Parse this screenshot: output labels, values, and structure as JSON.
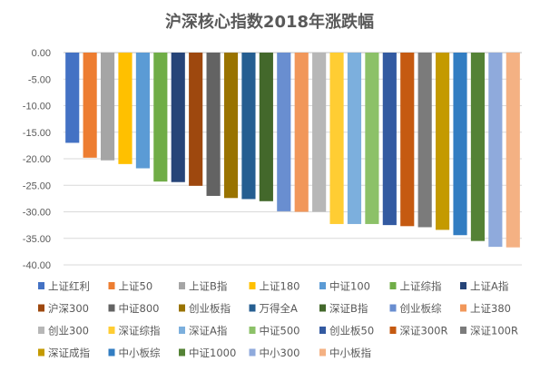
{
  "chart_data": {
    "type": "bar",
    "title": "沪深核心指数2018年涨跌幅",
    "xlabel": "",
    "ylabel": "",
    "ylim": [
      -40,
      0
    ],
    "y_ticks": [
      "0.00",
      "-5.00",
      "-10.00",
      "-15.00",
      "-20.00",
      "-25.00",
      "-30.00",
      "-35.00",
      "-40.00"
    ],
    "grid": true,
    "legend_position": "bottom",
    "series": [
      {
        "name": "上证红利",
        "value": -17.0,
        "color": "#4472C4"
      },
      {
        "name": "上证50",
        "value": -19.8,
        "color": "#ED7D31"
      },
      {
        "name": "上证B指",
        "value": -20.3,
        "color": "#A5A5A5"
      },
      {
        "name": "上证180",
        "value": -21.0,
        "color": "#FFC000"
      },
      {
        "name": "中证100",
        "value": -21.8,
        "color": "#5B9BD5"
      },
      {
        "name": "上证综指",
        "value": -24.3,
        "color": "#70AD47"
      },
      {
        "name": "上证A指",
        "value": -24.4,
        "color": "#264478"
      },
      {
        "name": "沪深300",
        "value": -25.1,
        "color": "#9E480E"
      },
      {
        "name": "中证800",
        "value": -27.0,
        "color": "#636363"
      },
      {
        "name": "创业板指",
        "value": -27.4,
        "color": "#997300"
      },
      {
        "name": "万得全A",
        "value": -27.6,
        "color": "#255E91"
      },
      {
        "name": "深证B指",
        "value": -28.0,
        "color": "#43682B"
      },
      {
        "name": "创业板综",
        "value": -29.9,
        "color": "#698ED0"
      },
      {
        "name": "上证380",
        "value": -30.0,
        "color": "#F1975A"
      },
      {
        "name": "创业300",
        "value": -30.0,
        "color": "#B7B7B7"
      },
      {
        "name": "深证综指",
        "value": -32.3,
        "color": "#FFCD33"
      },
      {
        "name": "深证A指",
        "value": -32.3,
        "color": "#7CAFDD"
      },
      {
        "name": "中证500",
        "value": -32.3,
        "color": "#8CC168"
      },
      {
        "name": "创业板50",
        "value": -32.5,
        "color": "#335AA1"
      },
      {
        "name": "深证300R",
        "value": -32.7,
        "color": "#C55A11"
      },
      {
        "name": "深证100R",
        "value": -32.9,
        "color": "#7B7B7B"
      },
      {
        "name": "深证成指",
        "value": -33.4,
        "color": "#C49A00"
      },
      {
        "name": "中小板综",
        "value": -34.4,
        "color": "#327DC2"
      },
      {
        "name": "中证1000",
        "value": -35.5,
        "color": "#548235"
      },
      {
        "name": "中小300",
        "value": -36.6,
        "color": "#8FAADC"
      },
      {
        "name": "中小板指",
        "value": -36.7,
        "color": "#F4B183"
      }
    ]
  }
}
